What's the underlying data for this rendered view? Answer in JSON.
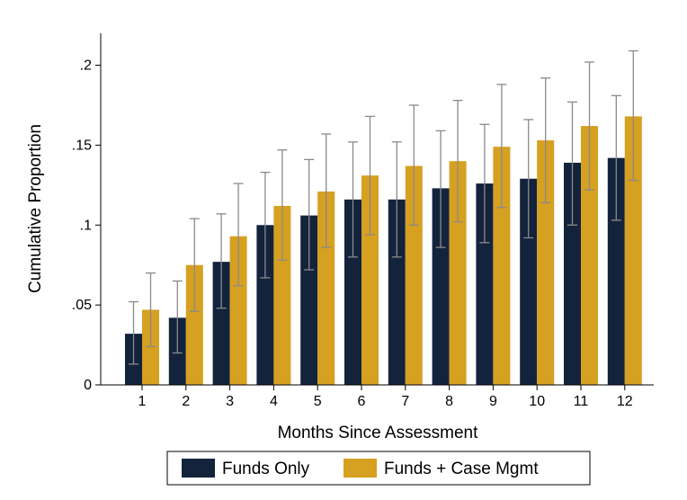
{
  "chart_data": {
    "type": "bar",
    "title": "",
    "xlabel": "Months Since Assessment",
    "ylabel": "Cumulative Proportion",
    "ylim": [
      0,
      0.22
    ],
    "yticks": [
      0,
      0.05,
      0.1,
      0.15,
      0.2
    ],
    "ytick_labels": [
      "0",
      ".05",
      ".1",
      ".15",
      ".2"
    ],
    "categories": [
      "1",
      "2",
      "3",
      "4",
      "5",
      "6",
      "7",
      "8",
      "9",
      "10",
      "11",
      "12"
    ],
    "series": [
      {
        "name": "Funds Only",
        "color": "#14233c",
        "values": [
          0.032,
          0.042,
          0.077,
          0.1,
          0.106,
          0.116,
          0.116,
          0.123,
          0.126,
          0.129,
          0.139,
          0.142
        ],
        "ci_low": [
          0.013,
          0.02,
          0.048,
          0.067,
          0.072,
          0.08,
          0.08,
          0.086,
          0.089,
          0.092,
          0.1,
          0.103
        ],
        "ci_high": [
          0.052,
          0.065,
          0.107,
          0.133,
          0.141,
          0.152,
          0.152,
          0.159,
          0.163,
          0.166,
          0.177,
          0.181
        ]
      },
      {
        "name": "Funds + Case Mgmt",
        "color": "#d6a020",
        "values": [
          0.047,
          0.075,
          0.093,
          0.112,
          0.121,
          0.131,
          0.137,
          0.14,
          0.149,
          0.153,
          0.162,
          0.168
        ],
        "ci_low": [
          0.024,
          0.046,
          0.062,
          0.078,
          0.086,
          0.094,
          0.1,
          0.102,
          0.111,
          0.114,
          0.122,
          0.128
        ],
        "ci_high": [
          0.07,
          0.104,
          0.126,
          0.147,
          0.157,
          0.168,
          0.175,
          0.178,
          0.188,
          0.192,
          0.202,
          0.209
        ]
      }
    ],
    "error_bar_color": "#8a8a8a",
    "legend_position": "bottom"
  }
}
